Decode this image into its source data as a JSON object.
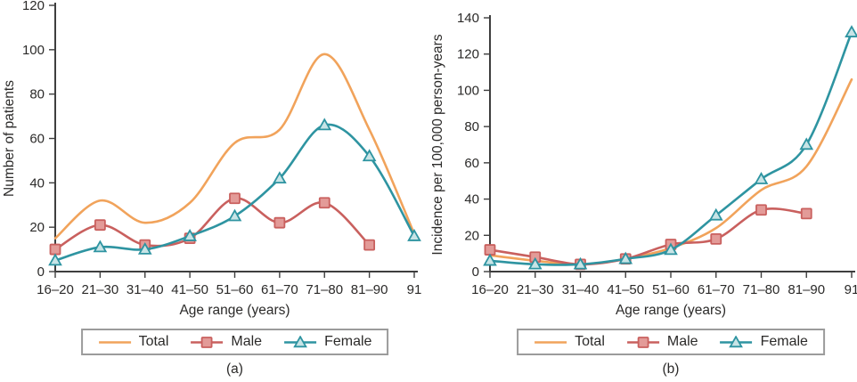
{
  "figure_type": "two-panel line figure",
  "text_color": "#2B2A29",
  "axis_color": "#3E3E3E",
  "legend_border_color": "#9B9B9B",
  "chart_data": [
    {
      "type": "line",
      "panel_caption": "(a)",
      "title": "",
      "xlabel": "Age range (years)",
      "ylabel": "Number of patients",
      "ylim": [
        0,
        120
      ],
      "yticks": [
        0,
        20,
        40,
        60,
        80,
        100,
        120
      ],
      "grid": false,
      "legend_position": "bottom",
      "categories": [
        "16–20",
        "21–30",
        "31–40",
        "41–50",
        "51–60",
        "61–70",
        "71–80",
        "81–90",
        "91"
      ],
      "series": [
        {
          "name": "Total",
          "marker": "none",
          "color": "#F1A35B",
          "marker_fill": "#F1A35B",
          "values": [
            15,
            32,
            22,
            31,
            58,
            64,
            98,
            64,
            17
          ]
        },
        {
          "name": "Male",
          "marker": "square",
          "color": "#C9605E",
          "marker_fill": "#E39B98",
          "values": [
            10,
            21,
            12,
            15,
            33,
            22,
            31,
            12,
            null
          ]
        },
        {
          "name": "Female",
          "marker": "triangle",
          "color": "#2E94A1",
          "marker_fill": "#C8E4E6",
          "values": [
            5,
            11,
            10,
            16,
            25,
            42,
            66,
            52,
            16
          ]
        }
      ]
    },
    {
      "type": "line",
      "panel_caption": "(b)",
      "title": "",
      "xlabel": "Age range (years)",
      "ylabel": "Incidence per 100,000 person-years",
      "ylim": [
        0,
        140
      ],
      "yticks": [
        0,
        20,
        40,
        60,
        80,
        100,
        120,
        140
      ],
      "grid": false,
      "legend_position": "bottom",
      "categories": [
        "16–20",
        "21–30",
        "31–40",
        "41–50",
        "51–60",
        "61–70",
        "71–80",
        "81–90",
        "91"
      ],
      "series": [
        {
          "name": "Total",
          "marker": "none",
          "color": "#F1A35B",
          "marker_fill": "#F1A35B",
          "values": [
            9,
            6,
            4,
            7,
            13,
            24,
            45,
            58,
            106
          ]
        },
        {
          "name": "Male",
          "marker": "square",
          "color": "#C9605E",
          "marker_fill": "#E39B98",
          "values": [
            12,
            8,
            4,
            7,
            15,
            18,
            34,
            32,
            null
          ]
        },
        {
          "name": "Female",
          "marker": "triangle",
          "color": "#2E94A1",
          "marker_fill": "#C8E4E6",
          "values": [
            6,
            4,
            4,
            7,
            12,
            31,
            51,
            70,
            132
          ]
        }
      ]
    }
  ]
}
